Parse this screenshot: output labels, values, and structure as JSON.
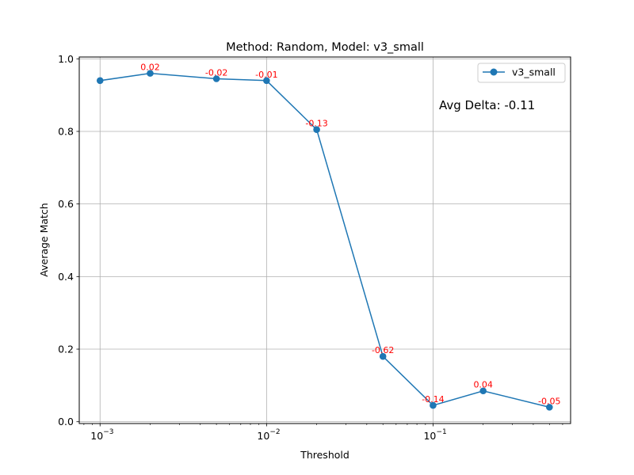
{
  "chart_data": {
    "type": "line",
    "title": "Method: Random, Model: v3_small",
    "xlabel": "Threshold",
    "ylabel": "Average Match",
    "xscale": "log",
    "xlim": [
      0.00075,
      0.67
    ],
    "ylim": [
      -0.005,
      1.005
    ],
    "grid": true,
    "legend_position": "top-right",
    "x_ticks": [
      {
        "value": 0.001,
        "mantissa": "10",
        "exp": "−3"
      },
      {
        "value": 0.01,
        "mantissa": "10",
        "exp": "−2"
      },
      {
        "value": 0.1,
        "mantissa": "10",
        "exp": "−1"
      }
    ],
    "y_ticks": [
      0.0,
      0.2,
      0.4,
      0.6,
      0.8,
      1.0
    ],
    "y_tick_labels": [
      "0.0",
      "0.2",
      "0.4",
      "0.6",
      "0.8",
      "1.0"
    ],
    "series": [
      {
        "name": "v3_small",
        "color": "#1f77b4",
        "x": [
          0.001,
          0.002,
          0.005,
          0.01,
          0.02,
          0.05,
          0.1,
          0.2,
          0.5
        ],
        "y": [
          0.94,
          0.96,
          0.945,
          0.94,
          0.805,
          0.18,
          0.045,
          0.085,
          0.04
        ],
        "point_labels": [
          "",
          "0.02",
          "-0.02",
          "-0.01",
          "-0.13",
          "-0.62",
          "-0.14",
          "0.04",
          "-0.05"
        ]
      }
    ],
    "annotation_color": "#ff0000",
    "annotation": "Avg Delta: -0.11"
  }
}
